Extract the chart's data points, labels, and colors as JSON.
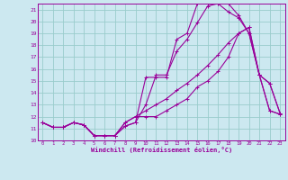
{
  "background_color": "#cce8f0",
  "grid_color": "#99cccc",
  "line_color": "#990099",
  "marker": "+",
  "xlabel": "Windchill (Refroidissement éolien,°C)",
  "xlim": [
    -0.5,
    23.5
  ],
  "ylim": [
    10,
    21.5
  ],
  "yticks": [
    10,
    11,
    12,
    13,
    14,
    15,
    16,
    17,
    18,
    19,
    20,
    21
  ],
  "xticks": [
    0,
    1,
    2,
    3,
    4,
    5,
    6,
    7,
    8,
    9,
    10,
    11,
    12,
    13,
    14,
    15,
    16,
    17,
    18,
    19,
    20,
    21,
    22,
    23
  ],
  "series": [
    [
      11.5,
      11.1,
      11.1,
      11.5,
      11.3,
      10.4,
      10.4,
      10.4,
      11.2,
      11.5,
      13.0,
      15.5,
      15.5,
      17.5,
      18.5,
      19.9,
      21.3,
      21.5,
      20.8,
      20.3,
      19.0,
      15.5,
      14.8,
      12.3
    ],
    [
      11.5,
      11.1,
      11.1,
      11.5,
      11.3,
      10.4,
      10.4,
      10.4,
      11.2,
      11.5,
      15.3,
      15.3,
      15.3,
      18.5,
      19.0,
      21.5,
      21.5,
      21.5,
      21.5,
      20.5,
      19.0,
      15.5,
      14.8,
      12.3
    ],
    [
      11.5,
      11.1,
      11.1,
      11.5,
      11.3,
      10.4,
      10.4,
      10.4,
      11.5,
      12.0,
      12.5,
      13.0,
      13.5,
      14.2,
      14.8,
      15.5,
      16.3,
      17.2,
      18.2,
      19.0,
      19.5,
      15.5,
      12.5,
      12.2
    ],
    [
      11.5,
      11.1,
      11.1,
      11.5,
      11.3,
      10.4,
      10.4,
      10.4,
      11.5,
      12.0,
      12.0,
      12.0,
      12.5,
      13.0,
      13.5,
      14.5,
      15.0,
      15.8,
      17.0,
      19.0,
      19.5,
      15.5,
      12.5,
      12.2
    ]
  ]
}
